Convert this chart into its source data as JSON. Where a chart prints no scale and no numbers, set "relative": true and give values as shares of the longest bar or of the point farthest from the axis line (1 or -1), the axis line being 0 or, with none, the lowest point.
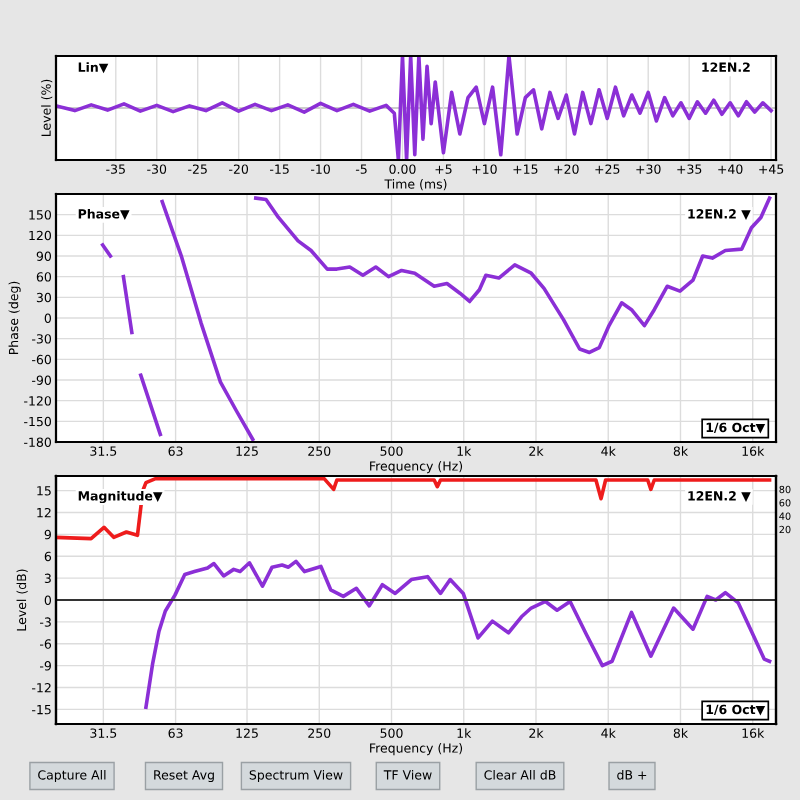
{
  "chart_data": [
    {
      "type": "line",
      "relative": true,
      "xlabel": "Time (ms)",
      "ylabel": "Level (%)",
      "annotations": [
        "Lin▼",
        "12EN.2"
      ],
      "xlim": [
        -42.3,
        45.6
      ],
      "xticks": [
        -35,
        -30,
        -25,
        -20,
        -15,
        -10,
        -5,
        {
          "value": 0,
          "label": "0.00"
        },
        {
          "value": 5,
          "label": "+5"
        },
        {
          "value": 10,
          "label": "+10"
        },
        {
          "value": 15,
          "label": "+15"
        },
        {
          "value": 20,
          "label": "+20"
        },
        {
          "value": 25,
          "label": "+25"
        },
        {
          "value": 30,
          "label": "+30"
        },
        {
          "value": 35,
          "label": "+35"
        },
        {
          "value": 40,
          "label": "+40"
        },
        {
          "value": 45,
          "label": "+45"
        }
      ],
      "grid": true,
      "series": [
        {
          "color": "#8b2fd6",
          "x": [
            -42,
            -40,
            -38,
            -36,
            -34,
            -32,
            -30,
            -28,
            -26,
            -24,
            -22,
            -20,
            -18,
            -16,
            -14,
            -12,
            -10,
            -8,
            -6,
            -4,
            -2,
            -1,
            -0.5,
            0,
            0.5,
            1,
            1.5,
            2,
            2.5,
            3,
            3.5,
            4,
            5,
            6,
            7,
            8,
            9,
            10,
            11,
            12,
            13,
            14,
            15,
            16,
            17,
            18,
            19,
            20,
            21,
            22,
            23,
            24,
            25,
            26,
            27,
            28,
            29,
            30,
            31,
            32,
            33,
            34,
            35,
            36,
            37,
            38,
            39,
            40,
            41,
            42,
            43,
            44,
            45
          ],
          "values": [
            0.03,
            -0.05,
            0.06,
            -0.04,
            0.08,
            -0.06,
            0.05,
            -0.07,
            0.04,
            -0.05,
            0.1,
            -0.06,
            0.07,
            -0.05,
            0.06,
            -0.08,
            0.09,
            -0.05,
            0.07,
            -0.06,
            0.05,
            -0.1,
            -1,
            1,
            -1,
            1,
            -0.9,
            1,
            -0.6,
            0.8,
            -0.3,
            0.5,
            -0.86,
            0.3,
            -0.5,
            0.2,
            0.4,
            -0.3,
            0.4,
            -0.9,
            1,
            -0.5,
            0.2,
            0.35,
            -0.4,
            0.3,
            -0.2,
            0.25,
            -0.5,
            0.3,
            -0.3,
            0.35,
            -0.2,
            0.4,
            -0.15,
            0.25,
            -0.1,
            0.3,
            -0.25,
            0.2,
            -0.15,
            0.1,
            -0.2,
            0.12,
            -0.1,
            0.15,
            -0.12,
            0.1,
            -0.15,
            0.12,
            -0.08,
            0.1,
            -0.05
          ]
        }
      ]
    },
    {
      "type": "line",
      "log": "x",
      "xlabel": "Frequency (Hz)",
      "ylabel": "Phase (deg)",
      "annotations": [
        "Phase▼",
        "12EN.2 ▼",
        "1/6 Oct▼"
      ],
      "xlim": [
        20,
        20000
      ],
      "xticks": [
        31.5,
        63,
        125,
        250,
        500,
        {
          "value": 1000,
          "label": "1k"
        },
        {
          "value": 2000,
          "label": "2k"
        },
        {
          "value": 4000,
          "label": "4k"
        },
        {
          "value": 8000,
          "label": "8k"
        },
        {
          "value": 16000,
          "label": "16k"
        }
      ],
      "ylim": [
        -180,
        180
      ],
      "yticks": [
        {
          "value": 180,
          "label": null
        },
        150,
        120,
        90,
        60,
        30,
        0,
        -30,
        -60,
        -90,
        -120,
        -150,
        -180
      ],
      "grid": true,
      "series": [
        {
          "color": "#8b2fd6",
          "x": [
            31.3,
            33.7,
            34,
            38.2,
            41.4,
            43,
            45.1,
            54.4,
            55,
            55.4,
            66.7,
            80.4,
            96.9,
            113,
            132,
            134,
            136,
            150,
            169,
            204,
            231,
            270,
            296,
            335,
            380,
            430,
            486,
            551,
            625,
            753,
            851,
            964,
            1058,
            1162,
            1236,
            1400,
            1632,
            1910,
            2160,
            2600,
            3040,
            3340,
            3670,
            4030,
            4550,
            5000,
            5660,
            6220,
            7040,
            7960,
            9020,
            9900,
            10860,
            12300,
            14400,
            15800,
            17300,
            18800
          ],
          "values": [
            106,
            90,
            null,
            60,
            -21,
            null,
            -83,
            -169,
            null,
            169,
            89,
            -7,
            -93,
            -135,
            -176,
            null,
            174,
            172,
            146,
            112,
            98,
            71,
            71,
            74,
            62,
            74,
            60,
            69,
            65,
            46,
            50,
            36,
            24,
            41,
            62,
            58,
            77,
            65,
            43,
            -2,
            -45,
            -50,
            -43,
            -11,
            22,
            12,
            -11,
            12,
            46,
            39,
            55,
            90,
            87,
            98,
            100,
            131,
            146,
            174
          ]
        }
      ]
    },
    {
      "type": "line",
      "log": "x",
      "xlabel": "Frequency (Hz)",
      "ylabel": "Level (dB)",
      "annotations": [
        "Magnitude▼",
        "12EN.2 ▼",
        "1/6 Oct▼",
        "Capture All",
        "Reset Avg",
        "Spectrum View",
        "TF View",
        "Clear All dB",
        "dB +"
      ],
      "xlim": [
        20,
        20000
      ],
      "xticks": [
        31.5,
        63,
        125,
        250,
        500,
        {
          "value": 1000,
          "label": "1k"
        },
        {
          "value": 2000,
          "label": "2k"
        },
        {
          "value": 4000,
          "label": "4k"
        },
        {
          "value": 8000,
          "label": "8k"
        },
        {
          "value": 16000,
          "label": "16k"
        }
      ],
      "ylim": [
        -17,
        17
      ],
      "yticks": [
        15,
        12,
        9,
        6,
        3,
        0,
        -3,
        -6,
        -9,
        -12,
        -15
      ],
      "y2lim": [
        -272,
        100
      ],
      "y2ticks": [
        20,
        40,
        60,
        80
      ],
      "grid": true,
      "ref_lines": [
        {
          "axis": "y",
          "value": 0,
          "color": "#333333"
        }
      ],
      "series": [
        {
          "color": "#ee1c1c",
          "axis": "y2",
          "x": [
            20,
            28,
            31.7,
            34.8,
            39.3,
            43.7,
            46,
            47.4,
            52,
            262,
            287,
            296,
            753,
            776,
            800,
            3554,
            3734,
            3900,
            5840,
            6020,
            6220,
            18800
          ],
          "values": [
            8,
            6,
            23,
            8,
            16,
            11,
            78,
            90,
            96,
            96,
            80,
            94,
            94,
            84,
            94,
            94,
            66,
            94,
            94,
            80,
            94,
            94
          ]
        },
        {
          "color": "#8b2fd6",
          "x": [
            47.4,
            50.5,
            53.7,
            57.1,
            62.7,
            68.8,
            75.5,
            85.6,
            91,
            99.9,
            110,
            117,
            128,
            145,
            159,
            175,
            186,
            200,
            217,
            254,
            279,
            315,
            357,
            404,
            458,
            518,
            605,
            707,
            800,
            878,
            995,
            1147,
            1316,
            1536,
            1740,
            1910,
            2190,
            2448,
            2774,
            3240,
            3780,
            4150,
            5000,
            6020,
            7490,
            9020,
            10330,
            11220,
            12300,
            13930,
            15800,
            17860,
            18800
          ],
          "values": [
            -14.7,
            -8.8,
            -4.3,
            -1.5,
            0.7,
            3.5,
            3.9,
            4.4,
            5.0,
            3.3,
            4.2,
            3.9,
            5.1,
            1.9,
            4.5,
            4.8,
            4.5,
            5.3,
            3.9,
            4.6,
            1.4,
            0.5,
            1.6,
            -0.8,
            2.1,
            0.9,
            2.8,
            3.2,
            0.9,
            2.8,
            0.9,
            -5.2,
            -2.9,
            -4.5,
            -2.3,
            -1.1,
            -0.2,
            -1.4,
            -0.2,
            -4.7,
            -9.0,
            -8.4,
            -1.7,
            -7.7,
            -1.1,
            -4.0,
            0.5,
            0,
            1.0,
            -0.4,
            -4.3,
            -8.1,
            -8.4
          ]
        }
      ]
    }
  ]
}
